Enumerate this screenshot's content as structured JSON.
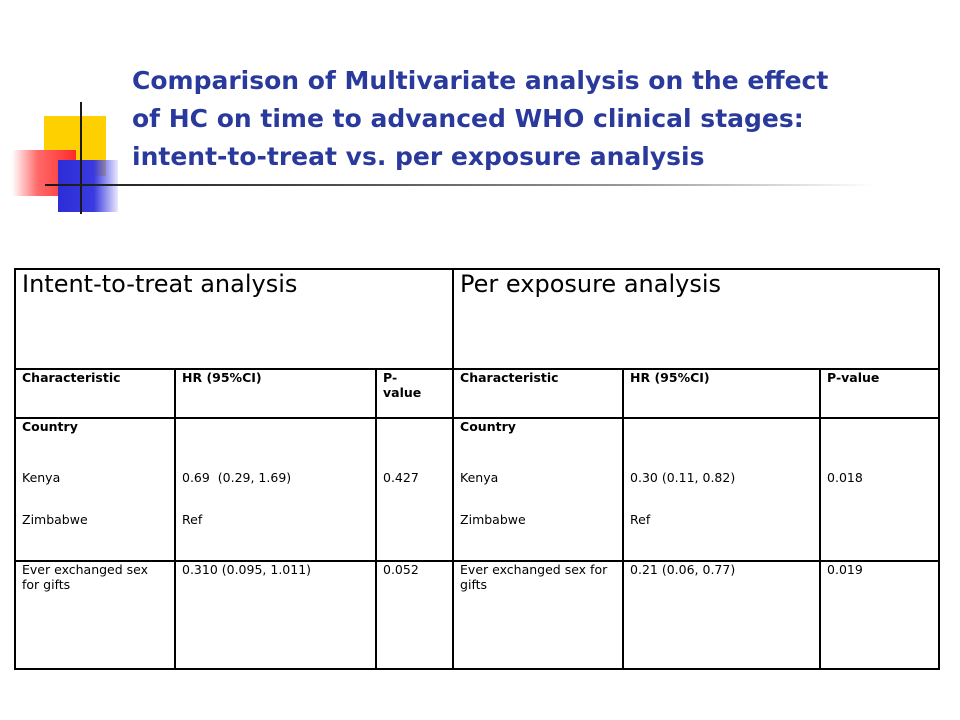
{
  "title": {
    "line1": "Comparison of Multivariate analysis on the effect",
    "line2": "of HC on time to advanced WHO clinical stages:",
    "line3": "intent-to-treat vs. per exposure analysis"
  },
  "table": {
    "groups": [
      "Intent-to-treat analysis",
      "Per exposure analysis"
    ],
    "columns": [
      "Characteristic",
      "HR (95%CI)",
      "P-value",
      "Characteristic",
      "HR (95%CI)",
      "P-value"
    ],
    "country": {
      "label": "Country",
      "itt": {
        "kenya": "Kenya",
        "kenya_hr": "0.69  (0.29, 1.69)",
        "p": "0.427",
        "zimbabwe": "Zimbabwe",
        "ref": "Ref"
      },
      "pe": {
        "kenya": "Kenya",
        "kenya_hr": "0.30 (0.11, 0.82)",
        "p": "0.018",
        "zimbabwe": "Zimbabwe",
        "ref": "Ref"
      }
    },
    "sex_gifts": {
      "label": "Ever exchanged sex for gifts",
      "itt": {
        "hr": "0.310 (0.095, 1.011)",
        "p": "0.052"
      },
      "pe": {
        "hr": "0.21 (0.06, 0.77)",
        "p": "0.019"
      }
    }
  }
}
